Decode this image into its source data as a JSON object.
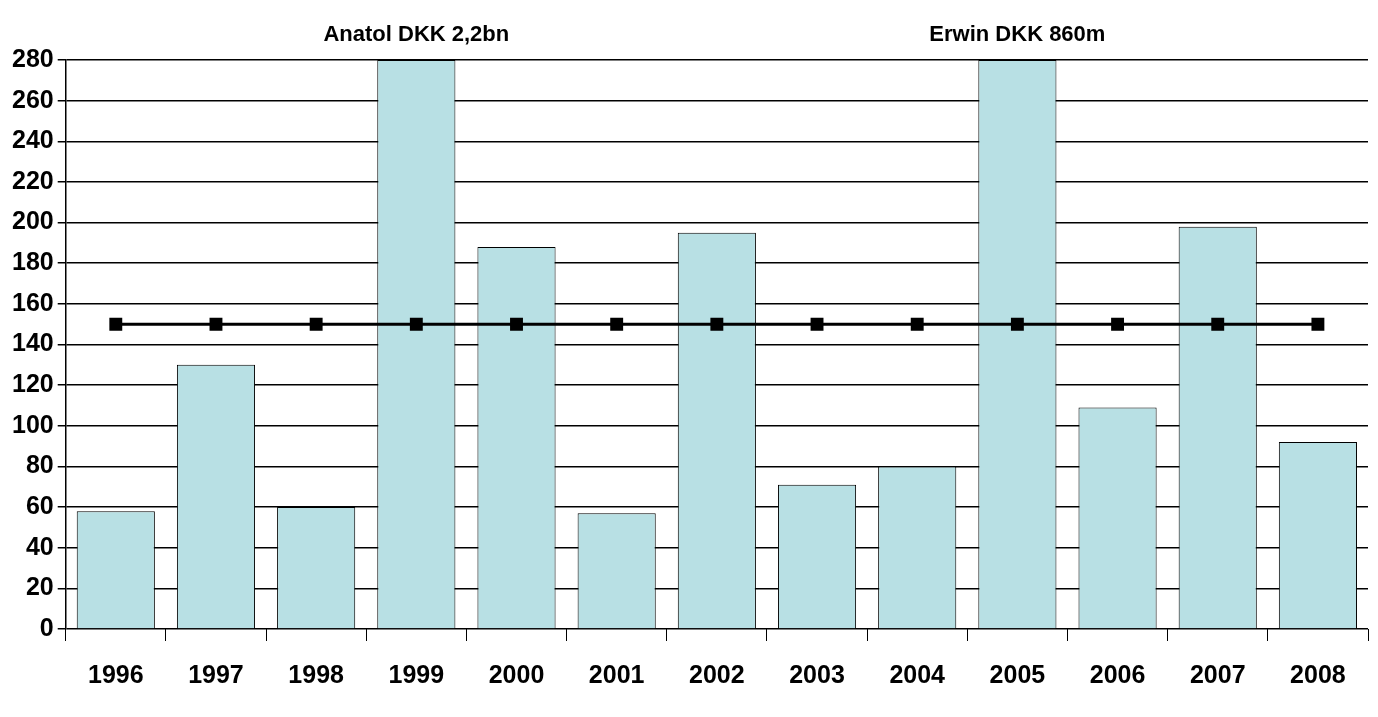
{
  "chart_data": {
    "type": "bar",
    "categories": [
      "1996",
      "1997",
      "1998",
      "1999",
      "2000",
      "2001",
      "2002",
      "2003",
      "2004",
      "2005",
      "2006",
      "2007",
      "2008"
    ],
    "series": [
      {
        "color": "#b8e0e4",
        "values": [
          58,
          130,
          60,
          280,
          188,
          57,
          195,
          71,
          80,
          280,
          109,
          198,
          92
        ]
      },
      {
        "type": "line",
        "color": "#000000",
        "marker": "square",
        "values": [
          150,
          150,
          150,
          150,
          150,
          150,
          150,
          150,
          150,
          150,
          150,
          150,
          150
        ]
      }
    ],
    "annotations": [
      {
        "text": "Anatol DKK 2,2bn",
        "x": "1999",
        "y": 280
      },
      {
        "text": "Erwin DKK 860m",
        "x": "2005",
        "y": 280
      }
    ],
    "ylim": [
      0,
      280
    ],
    "yticks": [
      0,
      20,
      40,
      60,
      80,
      100,
      120,
      140,
      160,
      180,
      200,
      220,
      240,
      260,
      280
    ],
    "grid": "y",
    "legend": false
  }
}
